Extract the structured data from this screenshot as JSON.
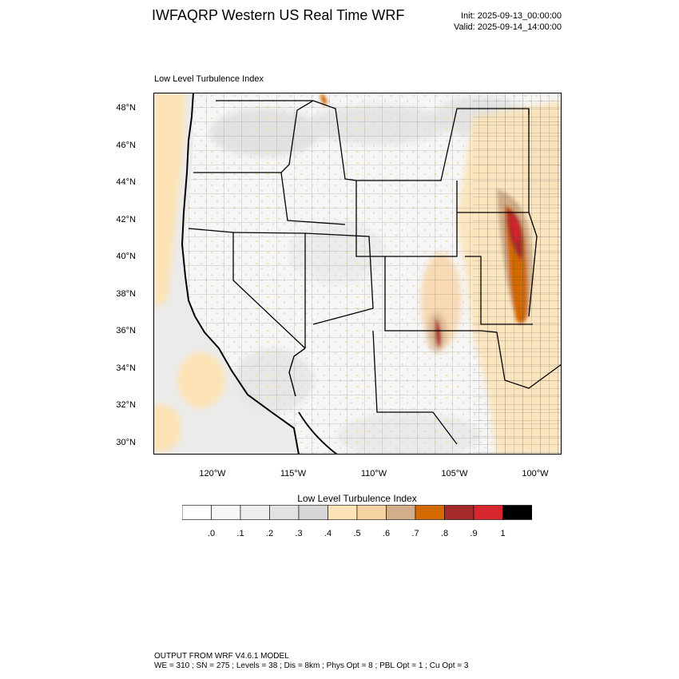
{
  "header": {
    "title": "IWFAQRP Western US Real Time WRF",
    "init": "Init: 2025-09-13_00:00:00",
    "valid": "Valid: 2025-09-14_14:00:00"
  },
  "panel": {
    "title": "Low Level Turbulence Index"
  },
  "axes": {
    "lat_ticks": [
      "48°N",
      "46°N",
      "44°N",
      "42°N",
      "40°N",
      "38°N",
      "36°N",
      "34°N",
      "32°N",
      "30°N"
    ],
    "lon_ticks": [
      "120°W",
      "115°W",
      "110°W",
      "105°W",
      "100°W"
    ]
  },
  "colorbar": {
    "title": "Low Level Turbulence Index",
    "labels": [
      ".0",
      ".1",
      ".2",
      ".3",
      ".4",
      ".5",
      ".6",
      ".7",
      ".8",
      ".9",
      "1"
    ],
    "colors": [
      "#ffffff",
      "#f7f7f7",
      "#eeeeee",
      "#e2e2e2",
      "#d6d6d6",
      "#fde3b5",
      "#f7d3a4",
      "#d2af8a",
      "#d26a00",
      "#a52a2a",
      "#d7262e",
      "#000000"
    ]
  },
  "footer": {
    "line1": "OUTPUT FROM WRF V4.6.1 MODEL",
    "line2": "WE = 310 ; SN = 275 ; Levels = 38 ; Dis = 8km ; Phys Opt = 8 ; PBL Opt = 1 ; Cu Opt = 3"
  }
}
